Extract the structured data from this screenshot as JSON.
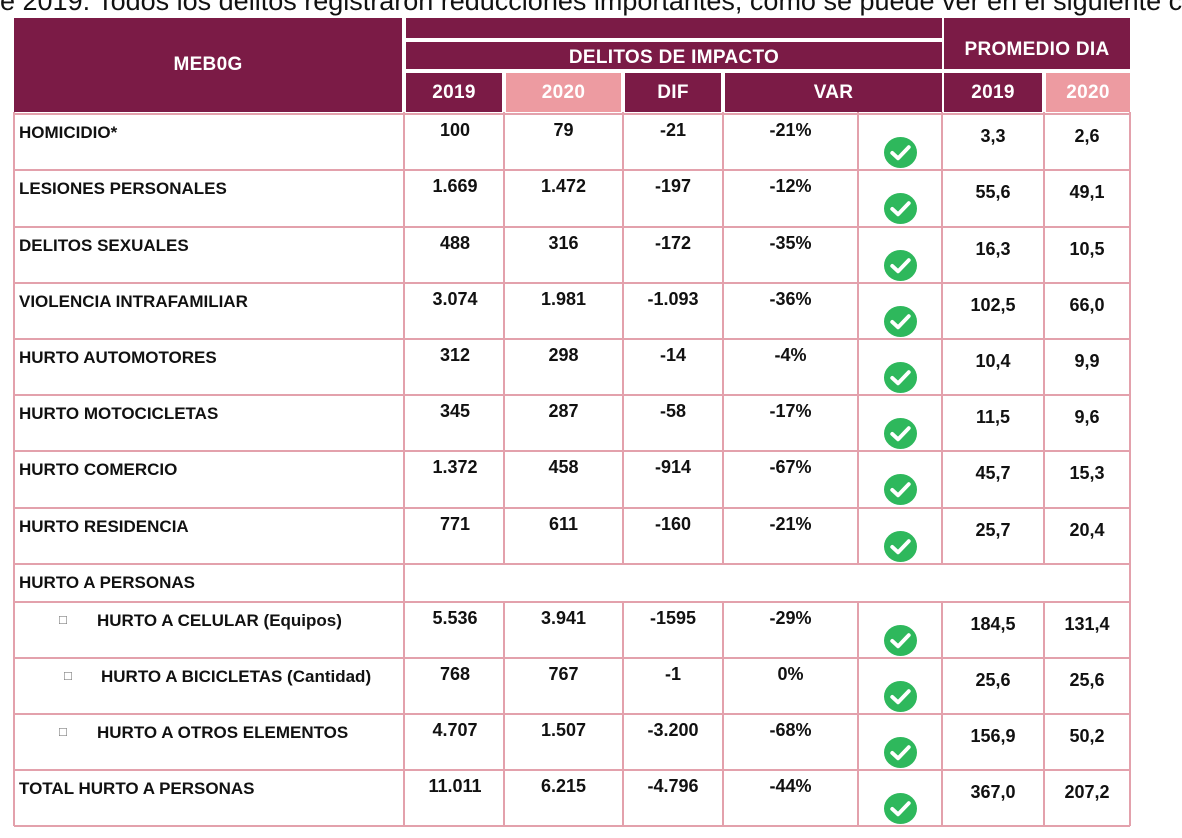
{
  "intro_text": "e 2019. Todos los delitos registraron reducciones importantes, como se puede ver en el siguiente c",
  "table": {
    "region_header": "MEB0G",
    "group_header": "DELITOS DE IMPACTO",
    "avg_header": "PROMEDIO DIA",
    "columns": [
      "2019",
      "2020",
      "DIF",
      "VAR",
      "2019",
      "2020"
    ],
    "rows": [
      {
        "label": "HOMICIDIO*",
        "y2019": "100",
        "y2020": "79",
        "dif": "-21",
        "var": "-21%",
        "p2019": "3,3",
        "p2020": "2,6"
      },
      {
        "label": "LESIONES PERSONALES",
        "y2019": "1.669",
        "y2020": "1.472",
        "dif": "-197",
        "var": "-12%",
        "p2019": "55,6",
        "p2020": "49,1"
      },
      {
        "label": "DELITOS SEXUALES",
        "y2019": "488",
        "y2020": "316",
        "dif": "-172",
        "var": "-35%",
        "p2019": "16,3",
        "p2020": "10,5"
      },
      {
        "label": "VIOLENCIA INTRAFAMILIAR",
        "y2019": "3.074",
        "y2020": "1.981",
        "dif": "-1.093",
        "var": "-36%",
        "p2019": "102,5",
        "p2020": "66,0"
      },
      {
        "label": "HURTO AUTOMOTORES",
        "y2019": "312",
        "y2020": "298",
        "dif": "-14",
        "var": "-4%",
        "p2019": "10,4",
        "p2020": "9,9"
      },
      {
        "label": "HURTO MOTOCICLETAS",
        "y2019": "345",
        "y2020": "287",
        "dif": "-58",
        "var": "-17%",
        "p2019": "11,5",
        "p2020": "9,6"
      },
      {
        "label": "HURTO COMERCIO",
        "y2019": "1.372",
        "y2020": "458",
        "dif": "-914",
        "var": "-67%",
        "p2019": "45,7",
        "p2020": "15,3"
      },
      {
        "label": "HURTO RESIDENCIA",
        "y2019": "771",
        "y2020": "611",
        "dif": "-160",
        "var": "-21%",
        "p2019": "25,7",
        "p2020": "20,4"
      }
    ],
    "section_label": "HURTO A PERSONAS",
    "sub_rows": [
      {
        "label": "HURTO A CELULAR (Equipos)",
        "y2019": "5.536",
        "y2020": "3.941",
        "dif": "-1595",
        "var": "-29%",
        "p2019": "184,5",
        "p2020": "131,4"
      },
      {
        "label": "HURTO A BICICLETAS (Cantidad)",
        "y2019": "768",
        "y2020": "767",
        "dif": "-1",
        "var": "0%",
        "p2019": "25,6",
        "p2020": "25,6"
      },
      {
        "label": "HURTO A OTROS ELEMENTOS",
        "y2019": "4.707",
        "y2020": "1.507",
        "dif": "-3.200",
        "var": "-68%",
        "p2019": "156,9",
        "p2020": "50,2"
      }
    ],
    "total": {
      "label": "TOTAL HURTO A PERSONAS",
      "y2019": "11.011",
      "y2020": "6.215",
      "dif": "-4.796",
      "var": "-44%",
      "p2019": "367,0",
      "p2020": "207,2"
    },
    "status_icon": "check-circle-icon",
    "colors": {
      "header": "#7b1b46",
      "header_accent": "#ed9ba1",
      "grid": "#e3a1ac",
      "check": "#2eb85c"
    }
  }
}
